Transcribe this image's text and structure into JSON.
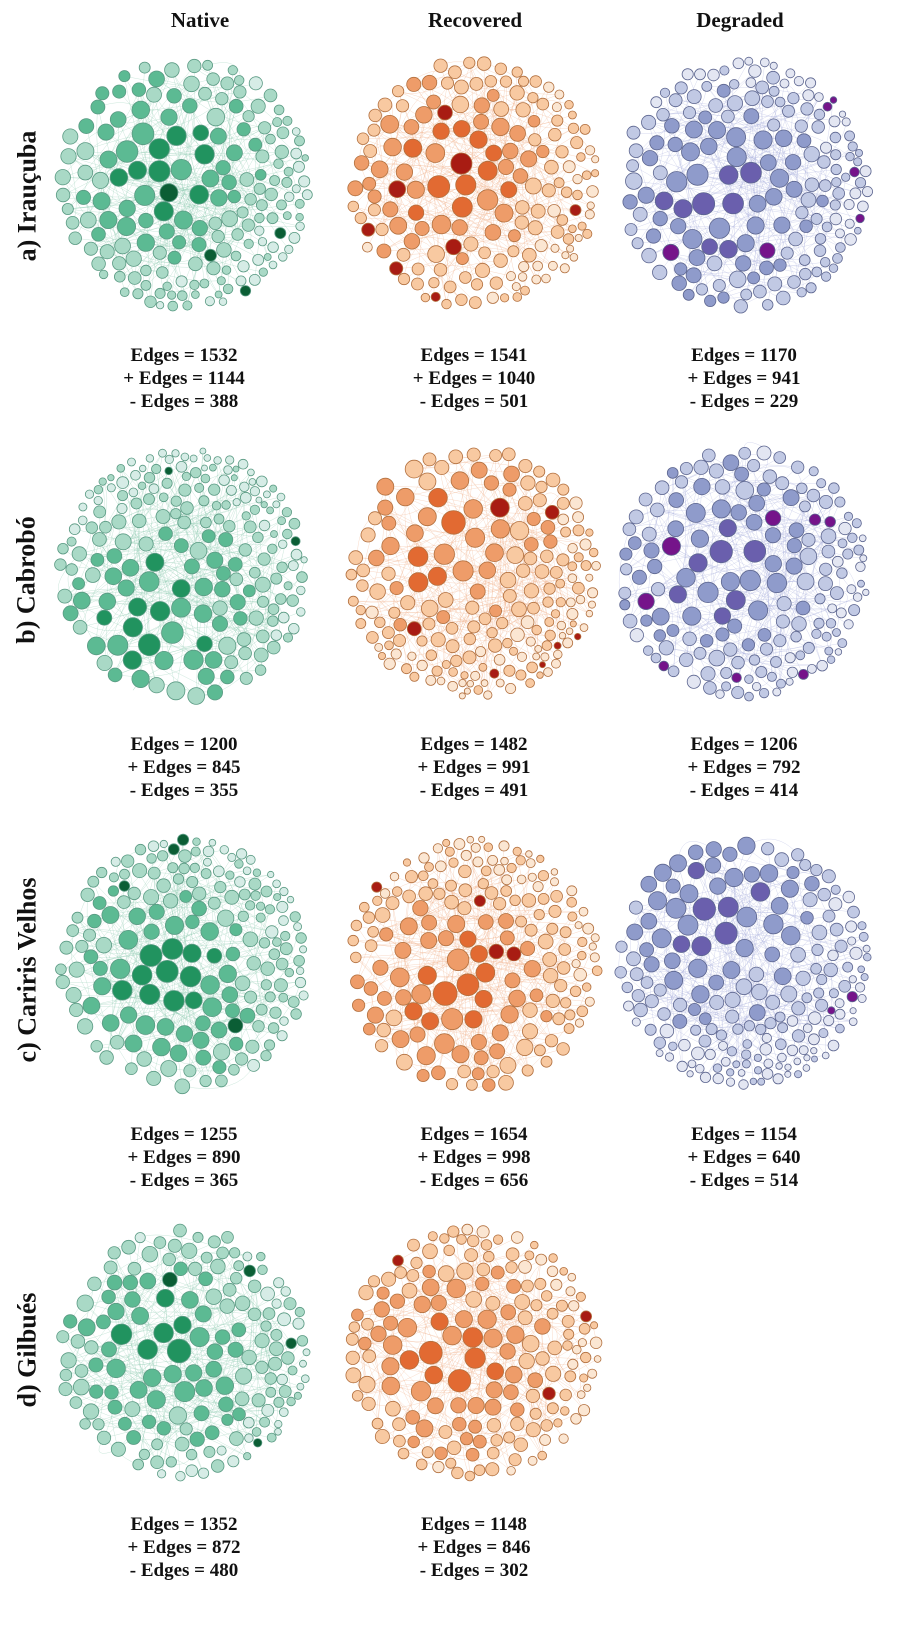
{
  "columns": [
    "Native",
    "Recovered",
    "Degraded"
  ],
  "rows": [
    {
      "label": "a) Irauçuba",
      "panels": [
        {
          "type": "native",
          "edges": "Edges = 1532",
          "pos": "+ Edges = 1144",
          "neg": "- Edges = 388"
        },
        {
          "type": "recovered",
          "edges": "Edges = 1541",
          "pos": "+ Edges = 1040",
          "neg": "- Edges = 501"
        },
        {
          "type": "degraded",
          "edges": "Edges = 1170",
          "pos": "+ Edges = 941",
          "neg": "- Edges = 229"
        }
      ]
    },
    {
      "label": "b) Cabrobó",
      "panels": [
        {
          "type": "native",
          "edges": "Edges = 1200",
          "pos": "+ Edges = 845",
          "neg": "- Edges = 355"
        },
        {
          "type": "recovered",
          "edges": "Edges = 1482",
          "pos": "+ Edges = 991",
          "neg": "- Edges = 491"
        },
        {
          "type": "degraded",
          "edges": "Edges = 1206",
          "pos": "+ Edges = 792",
          "neg": "- Edges = 414"
        }
      ]
    },
    {
      "label": "c) Cariris Velhos",
      "panels": [
        {
          "type": "native",
          "edges": "Edges = 1255",
          "pos": "+ Edges = 890",
          "neg": "- Edges = 365"
        },
        {
          "type": "recovered",
          "edges": "Edges = 1654",
          "pos": "+ Edges = 998",
          "neg": "- Edges = 656"
        },
        {
          "type": "degraded",
          "edges": "Edges = 1154",
          "pos": "+ Edges = 640",
          "neg": "- Edges = 514"
        }
      ]
    },
    {
      "label": "d) Gilbués",
      "panels": [
        {
          "type": "native",
          "edges": "Edges = 1352",
          "pos": "+ Edges = 872",
          "neg": "- Edges = 480"
        },
        {
          "type": "recovered",
          "edges": "Edges = 1148",
          "pos": "+ Edges = 846",
          "neg": "- Edges = 302"
        }
      ]
    }
  ],
  "palettes": {
    "native": {
      "pale": "#d6ece6",
      "light": "#a9d9c6",
      "mid": "#5cba93",
      "dark": "#21935f",
      "deep": "#0b5e35",
      "edge": "#8cc9b0",
      "stroke": "#5a9a83"
    },
    "recovered": {
      "pale": "#fbe6d2",
      "light": "#f8c9a1",
      "mid": "#ee9c69",
      "dark": "#e26a32",
      "deep": "#a81c13",
      "edge": "#efad86",
      "stroke": "#b2703f"
    },
    "degraded": {
      "pale": "#e3e6f2",
      "light": "#c1c9e4",
      "mid": "#8f9bcb",
      "dark": "#6a5fad",
      "deep": "#75148a",
      "edge": "#a7aedb",
      "stroke": "#5d6690"
    }
  }
}
